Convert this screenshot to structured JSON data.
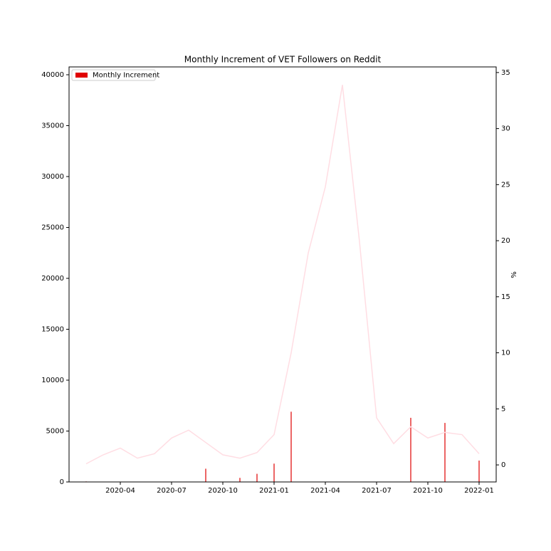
{
  "chart_data": {
    "type": "bar",
    "title": "Monthly Increment of VET Followers on Reddit",
    "y2label": "%",
    "x": [
      "2020-02",
      "2020-03",
      "2020-04",
      "2020-05",
      "2020-06",
      "2020-07",
      "2020-08",
      "2020-09",
      "2020-10",
      "2020-11",
      "2020-12",
      "2021-01",
      "2021-02",
      "2021-03",
      "2021-04",
      "2021-05",
      "2021-06",
      "2021-07",
      "2021-08",
      "2021-09",
      "2021-10",
      "2021-11",
      "2021-12",
      "2022-01"
    ],
    "xlim": [
      "2020-01",
      "2022-02"
    ],
    "xticks": [
      "2020-04",
      "2020-07",
      "2020-10",
      "2021-01",
      "2021-04",
      "2021-07",
      "2021-10",
      "2022-01"
    ],
    "ylim": [
      0,
      40770
    ],
    "yticks": [
      0,
      5000,
      10000,
      15000,
      20000,
      25000,
      30000,
      35000,
      40000
    ],
    "y2lim": [
      -1.52,
      35.5
    ],
    "y2ticks": [
      0,
      5,
      10,
      15,
      20,
      25,
      30,
      35
    ],
    "legend": "upper left",
    "series": [
      {
        "name": "Monthly Increment",
        "type": "bar",
        "color": "#e00000",
        "values": [
          50,
          0,
          0,
          0,
          0,
          0,
          0,
          1300,
          0,
          400,
          800,
          1800,
          6900,
          0,
          0,
          0,
          0,
          0,
          0,
          6300,
          0,
          5800,
          0,
          2100
        ]
      },
      {
        "type": "line",
        "axis": "y2",
        "color": "#ffdde3",
        "values": [
          0.1,
          0.9,
          1.5,
          0.6,
          1.0,
          2.4,
          3.1,
          2.0,
          0.9,
          0.6,
          1.1,
          2.7,
          10.0,
          18.9,
          24.8,
          33.9,
          19.9,
          4.2,
          1.9,
          3.4,
          2.4,
          2.9,
          2.7,
          1.0
        ]
      }
    ]
  }
}
